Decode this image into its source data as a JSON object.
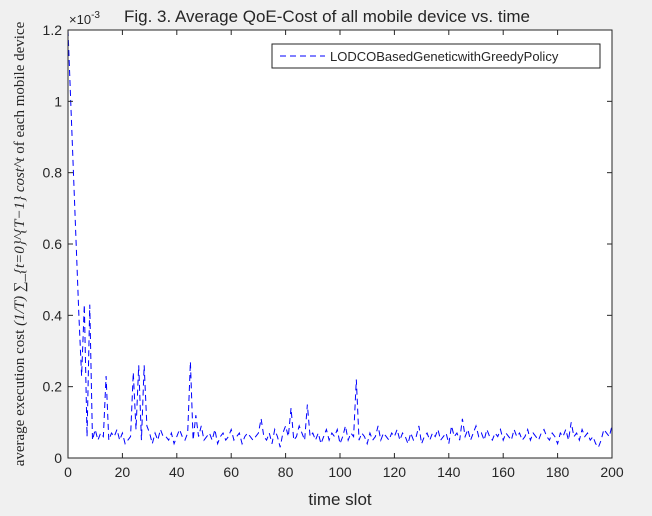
{
  "chart_data": {
    "type": "line",
    "title": "Fig. 3. Average QoE-Cost of all mobile device vs. time",
    "xlabel": "time slot",
    "ylabel": {
      "prefix": "average execution cost ",
      "math": "(1/T) ∑_{t=0}^{T−1} cost^t",
      "suffix": " of each mobile device"
    },
    "xlim": [
      0,
      200
    ],
    "ylim": [
      0,
      0.0012
    ],
    "y_exponent_label": "×10^-3",
    "xticks": [
      0,
      20,
      40,
      60,
      80,
      100,
      120,
      140,
      160,
      180,
      200
    ],
    "yticks": [
      0,
      0.2,
      0.4,
      0.6,
      0.8,
      1,
      1.2
    ],
    "ytick_scale": 0.001,
    "grid": false,
    "legend_position": "top-right",
    "series": [
      {
        "name": "LODCOBasedGeneticwithGreedyPolicy",
        "color": "#0000ff",
        "line_style": "dashed",
        "values": [
          1.2,
          1.0,
          0.8,
          0.6,
          0.4,
          0.23,
          0.43,
          0.06,
          0.43,
          0.05,
          0.08,
          0.05,
          0.07,
          0.06,
          0.23,
          0.05,
          0.07,
          0.06,
          0.08,
          0.05,
          0.07,
          0.04,
          0.05,
          0.06,
          0.24,
          0.08,
          0.26,
          0.05,
          0.26,
          0.09,
          0.07,
          0.04,
          0.07,
          0.05,
          0.08,
          0.06,
          0.06,
          0.05,
          0.07,
          0.04,
          0.06,
          0.08,
          0.06,
          0.05,
          0.07,
          0.27,
          0.05,
          0.12,
          0.06,
          0.09,
          0.05,
          0.06,
          0.07,
          0.05,
          0.08,
          0.04,
          0.06,
          0.07,
          0.05,
          0.06,
          0.08,
          0.05,
          0.06,
          0.07,
          0.04,
          0.06,
          0.07,
          0.06,
          0.05,
          0.06,
          0.07,
          0.11,
          0.06,
          0.05,
          0.07,
          0.04,
          0.08,
          0.06,
          0.03,
          0.07,
          0.09,
          0.06,
          0.14,
          0.05,
          0.06,
          0.09,
          0.07,
          0.05,
          0.15,
          0.06,
          0.07,
          0.05,
          0.07,
          0.04,
          0.06,
          0.08,
          0.05,
          0.07,
          0.06,
          0.08,
          0.04,
          0.06,
          0.09,
          0.05,
          0.07,
          0.06,
          0.22,
          0.05,
          0.07,
          0.06,
          0.04,
          0.07,
          0.05,
          0.06,
          0.09,
          0.05,
          0.07,
          0.06,
          0.05,
          0.07,
          0.06,
          0.08,
          0.05,
          0.07,
          0.06,
          0.04,
          0.07,
          0.05,
          0.06,
          0.09,
          0.04,
          0.06,
          0.07,
          0.05,
          0.07,
          0.06,
          0.08,
          0.05,
          0.06,
          0.07,
          0.04,
          0.09,
          0.06,
          0.07,
          0.05,
          0.11,
          0.06,
          0.08,
          0.05,
          0.07,
          0.09,
          0.06,
          0.07,
          0.05,
          0.08,
          0.06,
          0.05,
          0.07,
          0.06,
          0.08,
          0.05,
          0.07,
          0.06,
          0.05,
          0.08,
          0.06,
          0.07,
          0.05,
          0.06,
          0.08,
          0.05,
          0.07,
          0.06,
          0.05,
          0.07,
          0.08,
          0.06,
          0.05,
          0.07,
          0.06,
          0.04,
          0.07,
          0.06,
          0.08,
          0.05,
          0.1,
          0.06,
          0.07,
          0.05,
          0.08,
          0.06,
          0.07,
          0.05,
          0.06,
          0.04,
          0.03,
          0.05,
          0.08,
          0.07,
          0.06,
          0.09
        ]
      }
    ]
  }
}
